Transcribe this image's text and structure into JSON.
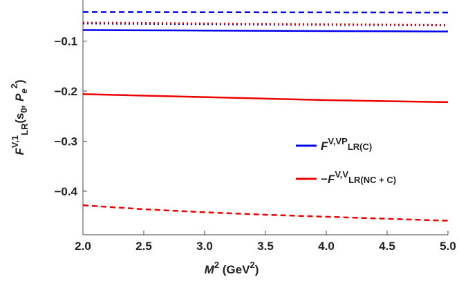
{
  "chart_data": {
    "type": "line",
    "x": [
      2.0,
      2.5,
      3.0,
      3.5,
      4.0,
      4.5,
      5.0
    ],
    "series": [
      {
        "color": "#0000ee",
        "dash": "solid",
        "values": [
          -0.078,
          -0.0785,
          -0.079,
          -0.0795,
          -0.08,
          -0.0805,
          -0.081
        ]
      },
      {
        "color": "#0000ee",
        "dash": "dashed",
        "values": [
          -0.042,
          -0.0422,
          -0.0424,
          -0.0426,
          -0.0427,
          -0.0429,
          -0.043
        ]
      },
      {
        "color": "#0000ee",
        "dash": "dotted",
        "values": [
          -0.065,
          -0.0657,
          -0.0664,
          -0.067,
          -0.0676,
          -0.0683,
          -0.069
        ]
      },
      {
        "color": "#ee0000",
        "dash": "dotted",
        "values": [
          -0.063,
          -0.0638,
          -0.0647,
          -0.0655,
          -0.0663,
          -0.0672,
          -0.068
        ]
      },
      {
        "color": "#ee0000",
        "dash": "solid",
        "values": [
          -0.206,
          -0.209,
          -0.212,
          -0.215,
          -0.218,
          -0.22,
          -0.222
        ]
      },
      {
        "color": "#ee0000",
        "dash": "dashed",
        "values": [
          -0.428,
          -0.436,
          -0.442,
          -0.447,
          -0.451,
          -0.455,
          -0.459
        ]
      }
    ],
    "xlim": [
      2.0,
      5.0
    ],
    "ylim": [
      -0.487,
      -0.018
    ],
    "xticks": [
      {
        "value": 2,
        "label": "2.0"
      },
      {
        "value": 2.5,
        "label": "2.5"
      },
      {
        "value": 3,
        "label": "3.0"
      },
      {
        "value": 3.5,
        "label": "3.5"
      },
      {
        "value": 4,
        "label": "4.0"
      },
      {
        "value": 4.5,
        "label": "4.5"
      },
      {
        "value": 5,
        "label": "5.0"
      }
    ],
    "yticks": [
      {
        "value": -0.1,
        "label": "−0.1"
      },
      {
        "value": -0.2,
        "label": "−0.2"
      },
      {
        "value": -0.3,
        "label": "−0.3"
      },
      {
        "value": -0.4,
        "label": "−0.4"
      }
    ],
    "xlabel": {
      "main": "M",
      "sup": "2",
      "rest": " (GeV",
      "sup2": "2",
      "end": ")"
    },
    "ylabel": {
      "main": "F",
      "sup": "V,1",
      "sub": "LR",
      "rest": "(s",
      "sub2": "0",
      "mid": ", P",
      "sub3": "e",
      "sup3": "2",
      "end": ")"
    },
    "legend": [
      {
        "color": "#0000ee",
        "pre": "",
        "main": "F",
        "sup": "V,VP",
        "sub": "LR(C)"
      },
      {
        "color": "#ee0000",
        "pre": "−",
        "main": "F",
        "sup": "V,V",
        "sub": "LR(NC + C)"
      }
    ]
  }
}
